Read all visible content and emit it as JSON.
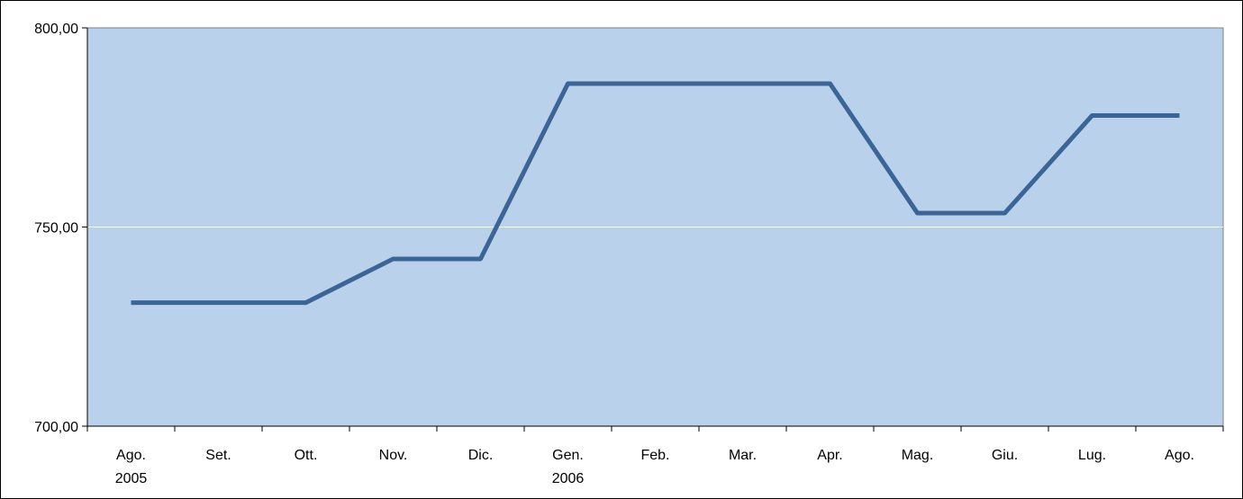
{
  "chart_data": {
    "type": "line",
    "categories": [
      "Ago.\n2005",
      "Set.",
      "Ott.",
      "Nov.",
      "Dic.",
      "Gen.\n2006",
      "Feb.",
      "Mar.",
      "Apr.",
      "Mag.",
      "Giu.",
      "Lug.",
      "Ago."
    ],
    "values": [
      731,
      731,
      731,
      742,
      742,
      786,
      786,
      786,
      786,
      753.5,
      753.5,
      778,
      778
    ],
    "color": "#3a6596",
    "ylim": [
      700,
      800
    ],
    "yticks": [
      {
        "value": 700,
        "label": "700,00"
      },
      {
        "value": 750,
        "label": "750,00"
      },
      {
        "value": 800,
        "label": "800,00"
      }
    ],
    "grid": true
  }
}
